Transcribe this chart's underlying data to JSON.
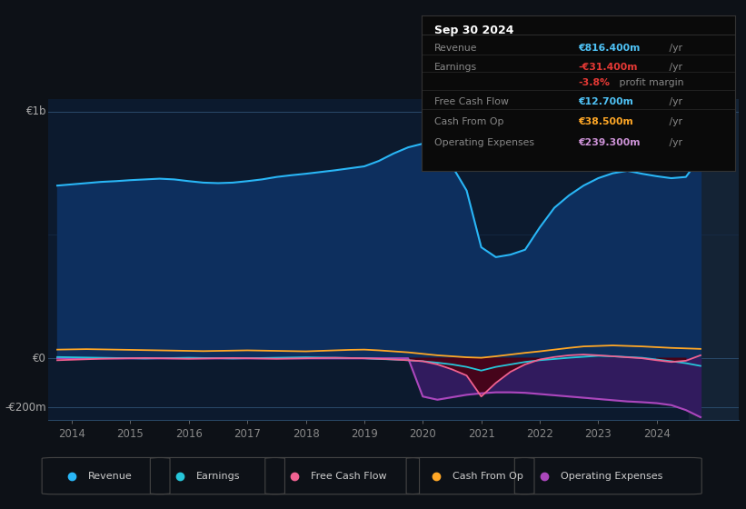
{
  "bg_color": "#0d1117",
  "plot_bg_color": "#0c1a2e",
  "title_box": {
    "date": "Sep 30 2024",
    "rows": [
      {
        "label": "Revenue",
        "value": "€816.400m",
        "unit": " /yr",
        "value_color": "#4fc3f7"
      },
      {
        "label": "Earnings",
        "value": "-€31.400m",
        "unit": " /yr",
        "value_color": "#e53935"
      },
      {
        "label": "",
        "value": "-3.8%",
        "unit": " profit margin",
        "value_color": "#e53935"
      },
      {
        "label": "Free Cash Flow",
        "value": "€12.700m",
        "unit": " /yr",
        "value_color": "#4fc3f7"
      },
      {
        "label": "Cash From Op",
        "value": "€38.500m",
        "unit": " /yr",
        "value_color": "#ffa726"
      },
      {
        "label": "Operating Expenses",
        "value": "€239.300m",
        "unit": " /yr",
        "value_color": "#ce93d8"
      }
    ]
  },
  "ylabel_top": "€1b",
  "ylabel_zero": "€0",
  "ylabel_bottom": "-€200m",
  "ylim": [
    -250,
    1050
  ],
  "xlim_start": 2013.6,
  "xlim_end": 2025.4,
  "xticks": [
    2014,
    2015,
    2016,
    2017,
    2018,
    2019,
    2020,
    2021,
    2022,
    2023,
    2024
  ],
  "legend": [
    {
      "label": "Revenue",
      "color": "#29b6f6"
    },
    {
      "label": "Earnings",
      "color": "#26c6da"
    },
    {
      "label": "Free Cash Flow",
      "color": "#f06292"
    },
    {
      "label": "Cash From Op",
      "color": "#ffa726"
    },
    {
      "label": "Operating Expenses",
      "color": "#ab47bc"
    }
  ],
  "series": {
    "x": [
      2013.75,
      2014.0,
      2014.25,
      2014.5,
      2014.75,
      2015.0,
      2015.25,
      2015.5,
      2015.75,
      2016.0,
      2016.25,
      2016.5,
      2016.75,
      2017.0,
      2017.25,
      2017.5,
      2017.75,
      2018.0,
      2018.25,
      2018.5,
      2018.75,
      2019.0,
      2019.25,
      2019.5,
      2019.75,
      2020.0,
      2020.25,
      2020.5,
      2020.75,
      2021.0,
      2021.25,
      2021.5,
      2021.75,
      2022.0,
      2022.25,
      2022.5,
      2022.75,
      2023.0,
      2023.25,
      2023.5,
      2023.75,
      2024.0,
      2024.25,
      2024.5,
      2024.75
    ],
    "revenue": [
      700,
      705,
      710,
      715,
      718,
      722,
      725,
      728,
      725,
      718,
      712,
      710,
      712,
      718,
      725,
      735,
      742,
      748,
      755,
      762,
      770,
      778,
      800,
      830,
      855,
      870,
      840,
      780,
      680,
      450,
      410,
      420,
      440,
      530,
      610,
      660,
      700,
      730,
      750,
      760,
      748,
      738,
      730,
      735,
      816
    ],
    "earnings": [
      5,
      4,
      3,
      2,
      1,
      0,
      -1,
      0,
      1,
      2,
      1,
      0,
      -1,
      0,
      1,
      2,
      3,
      4,
      3,
      2,
      1,
      0,
      -3,
      -5,
      -8,
      -12,
      -18,
      -25,
      -35,
      -50,
      -35,
      -25,
      -15,
      -8,
      -3,
      2,
      6,
      10,
      8,
      5,
      2,
      -5,
      -12,
      -20,
      -31
    ],
    "free_cash_flow": [
      -8,
      -6,
      -4,
      -2,
      -1,
      0,
      1,
      0,
      -1,
      -2,
      -1,
      0,
      1,
      0,
      -1,
      -2,
      -1,
      0,
      1,
      2,
      1,
      0,
      -2,
      -5,
      -8,
      -12,
      -25,
      -45,
      -70,
      -155,
      -100,
      -55,
      -25,
      -5,
      5,
      12,
      15,
      12,
      8,
      4,
      0,
      -8,
      -15,
      -10,
      12
    ],
    "cash_from_op": [
      35,
      36,
      37,
      36,
      35,
      34,
      33,
      32,
      31,
      30,
      29,
      30,
      31,
      32,
      31,
      30,
      29,
      28,
      30,
      32,
      34,
      35,
      32,
      28,
      24,
      18,
      12,
      8,
      4,
      2,
      8,
      15,
      22,
      28,
      35,
      42,
      48,
      50,
      52,
      50,
      48,
      45,
      42,
      40,
      38
    ],
    "op_expenses": [
      0,
      0,
      0,
      0,
      0,
      0,
      0,
      0,
      0,
      0,
      0,
      0,
      0,
      0,
      0,
      0,
      0,
      0,
      0,
      0,
      0,
      0,
      0,
      0,
      0,
      -155,
      -168,
      -158,
      -148,
      -142,
      -138,
      -138,
      -140,
      -145,
      -150,
      -155,
      -160,
      -165,
      -170,
      -175,
      -178,
      -182,
      -190,
      -210,
      -239
    ]
  }
}
